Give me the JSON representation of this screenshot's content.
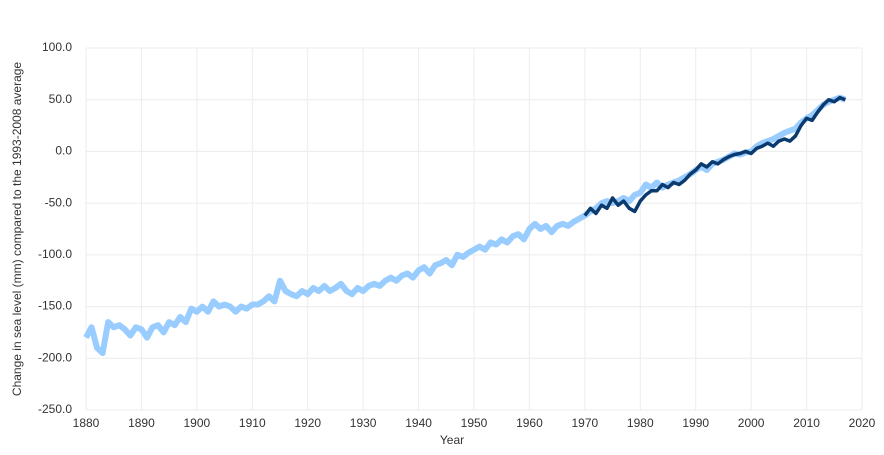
{
  "chart_data": {
    "type": "line",
    "ylabel": "Change in sea level (mm) compared to the 1993-2008 average",
    "xlabel": "Year",
    "xlim": [
      1880,
      2020
    ],
    "xticks": [
      1880,
      1890,
      1900,
      1910,
      1920,
      1930,
      1940,
      1950,
      1960,
      1970,
      1980,
      1990,
      2000,
      2010,
      2020
    ],
    "ylim": [
      -250,
      100
    ],
    "yticks": [
      {
        "value": -250,
        "label": "-250.0"
      },
      {
        "value": -200,
        "label": "-200.0"
      },
      {
        "value": -150,
        "label": "-150.0"
      },
      {
        "value": -100,
        "label": "-100.0"
      },
      {
        "value": -50,
        "label": "-50.0"
      },
      {
        "value": 0,
        "label": "0.0"
      },
      {
        "value": 50,
        "label": "50.0"
      },
      {
        "value": 100,
        "label": "100.0"
      }
    ],
    "grid": true,
    "series": [
      {
        "color": "#99ccff",
        "x": [
          1880,
          1881,
          1882,
          1883,
          1884,
          1885,
          1886,
          1887,
          1888,
          1889,
          1890,
          1891,
          1892,
          1893,
          1894,
          1895,
          1896,
          1897,
          1898,
          1899,
          1900,
          1901,
          1902,
          1903,
          1904,
          1905,
          1906,
          1907,
          1908,
          1909,
          1910,
          1911,
          1912,
          1913,
          1914,
          1915,
          1916,
          1917,
          1918,
          1919,
          1920,
          1921,
          1922,
          1923,
          1924,
          1925,
          1926,
          1927,
          1928,
          1929,
          1930,
          1931,
          1932,
          1933,
          1934,
          1935,
          1936,
          1937,
          1938,
          1939,
          1940,
          1941,
          1942,
          1943,
          1944,
          1945,
          1946,
          1947,
          1948,
          1949,
          1950,
          1951,
          1952,
          1953,
          1954,
          1955,
          1956,
          1957,
          1958,
          1959,
          1960,
          1961,
          1962,
          1963,
          1964,
          1965,
          1966,
          1967,
          1968,
          1969,
          1970,
          1971,
          1972,
          1973,
          1974,
          1975,
          1976,
          1977,
          1978,
          1979,
          1980,
          1981,
          1982,
          1983,
          1984,
          1985,
          1986,
          1987,
          1988,
          1989,
          1990,
          1991,
          1992,
          1993,
          1994,
          1995,
          1996,
          1997,
          1998,
          1999,
          2000,
          2001,
          2002,
          2003,
          2004,
          2005,
          2006,
          2007,
          2008,
          2009,
          2010,
          2011,
          2012,
          2013,
          2014,
          2015,
          2016,
          2017
        ],
        "values": [
          -180,
          -170,
          -190,
          -195,
          -165,
          -170,
          -168,
          -172,
          -178,
          -170,
          -172,
          -180,
          -170,
          -168,
          -175,
          -165,
          -168,
          -160,
          -165,
          -152,
          -155,
          -150,
          -155,
          -145,
          -150,
          -148,
          -150,
          -155,
          -150,
          -152,
          -148,
          -148,
          -145,
          -140,
          -145,
          -125,
          -135,
          -138,
          -140,
          -135,
          -138,
          -132,
          -135,
          -130,
          -135,
          -132,
          -128,
          -135,
          -138,
          -132,
          -135,
          -130,
          -128,
          -130,
          -125,
          -122,
          -125,
          -120,
          -118,
          -122,
          -115,
          -112,
          -118,
          -110,
          -108,
          -105,
          -110,
          -100,
          -102,
          -98,
          -95,
          -92,
          -95,
          -88,
          -90,
          -85,
          -88,
          -82,
          -80,
          -85,
          -75,
          -70,
          -75,
          -72,
          -78,
          -72,
          -70,
          -72,
          -68,
          -65,
          -62,
          -58,
          -55,
          -50,
          -48,
          -50,
          -48,
          -45,
          -48,
          -42,
          -40,
          -32,
          -35,
          -30,
          -35,
          -32,
          -30,
          -28,
          -25,
          -22,
          -18,
          -15,
          -18,
          -12,
          -10,
          -8,
          -5,
          -2,
          -3,
          -1,
          0,
          5,
          8,
          10,
          12,
          15,
          18,
          20,
          22,
          28,
          32,
          35,
          40,
          45,
          48,
          50,
          52,
          50
        ]
      },
      {
        "color": "#0b3a6e",
        "x": [
          1970,
          1971,
          1972,
          1973,
          1974,
          1975,
          1976,
          1977,
          1978,
          1979,
          1980,
          1981,
          1982,
          1983,
          1984,
          1985,
          1986,
          1987,
          1988,
          1989,
          1990,
          1991,
          1992,
          1993,
          1994,
          1995,
          1996,
          1997,
          1998,
          1999,
          2000,
          2001,
          2002,
          2003,
          2004,
          2005,
          2006,
          2007,
          2008,
          2009,
          2010,
          2011,
          2012,
          2013,
          2014,
          2015,
          2016,
          2017
        ],
        "values": [
          -62,
          -55,
          -60,
          -52,
          -55,
          -45,
          -52,
          -48,
          -55,
          -58,
          -48,
          -42,
          -38,
          -38,
          -32,
          -35,
          -30,
          -32,
          -28,
          -22,
          -18,
          -12,
          -15,
          -10,
          -12,
          -8,
          -5,
          -3,
          -2,
          0,
          -2,
          3,
          5,
          8,
          5,
          10,
          12,
          10,
          15,
          25,
          32,
          30,
          38,
          45,
          50,
          48,
          52,
          50
        ]
      }
    ]
  }
}
